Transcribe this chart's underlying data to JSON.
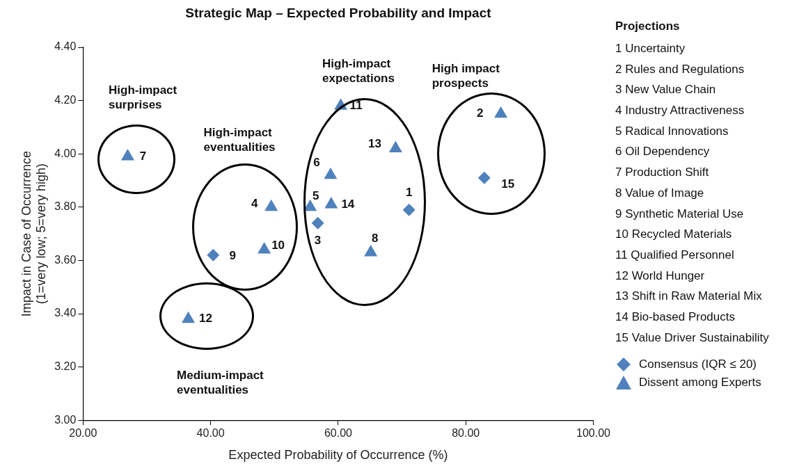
{
  "chart_data": {
    "type": "scatter",
    "title": "Strategic Map – Expected Probability and Impact",
    "xlabel": "Expected Probability of Occurrence (%)",
    "ylabel": "Impact in Case of Occurrence\n(1=very low; 5=very high)",
    "legend_title": "Projections",
    "legend": "right",
    "grid": false,
    "xlim": [
      20,
      100
    ],
    "xticks": [
      {
        "value": 20,
        "label": "20.00"
      },
      {
        "value": 40,
        "label": "40.00"
      },
      {
        "value": 60,
        "label": "60.00"
      },
      {
        "value": 80,
        "label": "80.00"
      },
      {
        "value": 100,
        "label": "100.00"
      }
    ],
    "ylim": [
      3,
      4.4
    ],
    "yticks": [
      {
        "value": 3,
        "label": "3.00"
      },
      {
        "value": 3.2,
        "label": "3.20"
      },
      {
        "value": 3.4,
        "label": "3.40"
      },
      {
        "value": 3.6,
        "label": "3.60"
      },
      {
        "value": 3.8,
        "label": "3.80"
      },
      {
        "value": 4,
        "label": "4.00"
      },
      {
        "value": 4.2,
        "label": "4.20"
      },
      {
        "value": 4.4,
        "label": "4.40"
      }
    ],
    "series": [
      {
        "name": "Consensus (IQR ≤ 20)",
        "color": "#4f81bd",
        "marker": "diamond",
        "x": [
          71.1,
          56.8,
          40.4,
          82.9
        ],
        "values": [
          3.79,
          3.74,
          3.62,
          3.91
        ]
      },
      {
        "name": "Dissent among Experts",
        "color": "#4f81bd",
        "marker": "triangle",
        "x": [
          85.5,
          49.5,
          55.6,
          58.8,
          27.0,
          65.1,
          48.4,
          60.4,
          36.5,
          69.0,
          58.9
        ],
        "values": [
          4.15,
          3.8,
          3.8,
          3.92,
          3.99,
          3.63,
          3.64,
          4.18,
          3.38,
          4.02,
          3.81
        ]
      }
    ],
    "annotations": [
      "High-impact\nsurprises",
      "High-impact\neventualities",
      "Medium-impact\neventualities",
      "High-impact\nexpectations",
      "High impact\nprospects",
      "1 Uncertainty",
      "2 Rules and Regulations",
      "3 New Value Chain",
      "4 Industry Attractiveness",
      "5 Radical Innovations",
      "6 Oil Dependency",
      "7 Production Shift",
      "8 Value of Image",
      "9 Synthetic Material Use",
      "10 Recycled Materials",
      "11 Qualified Personnel",
      "12 World Hunger",
      "13 Shift in Raw Material Mix",
      "14 Bio-based Products",
      "15 Value Driver Sustainability",
      {
        "text": "1",
        "x": 71.1,
        "y": 3.79
      },
      {
        "text": "2",
        "x": 85.5,
        "y": 4.15
      },
      {
        "text": "3",
        "x": 56.8,
        "y": 3.74
      },
      {
        "text": "4",
        "x": 49.5,
        "y": 3.8
      },
      {
        "text": "5",
        "x": 55.6,
        "y": 3.8
      },
      {
        "text": "6",
        "x": 58.8,
        "y": 3.92
      },
      {
        "text": "7",
        "x": 27.0,
        "y": 3.99
      },
      {
        "text": "8",
        "x": 65.1,
        "y": 3.63
      },
      {
        "text": "9",
        "x": 40.4,
        "y": 3.62
      },
      {
        "text": "10",
        "x": 48.4,
        "y": 3.64
      },
      {
        "text": "11",
        "x": 60.4,
        "y": 4.18
      },
      {
        "text": "12",
        "x": 36.5,
        "y": 3.38
      },
      {
        "text": "13",
        "x": 69.0,
        "y": 4.02
      },
      {
        "text": "14",
        "x": 58.9,
        "y": 3.81
      },
      {
        "text": "15",
        "x": 82.9,
        "y": 3.91
      }
    ]
  }
}
